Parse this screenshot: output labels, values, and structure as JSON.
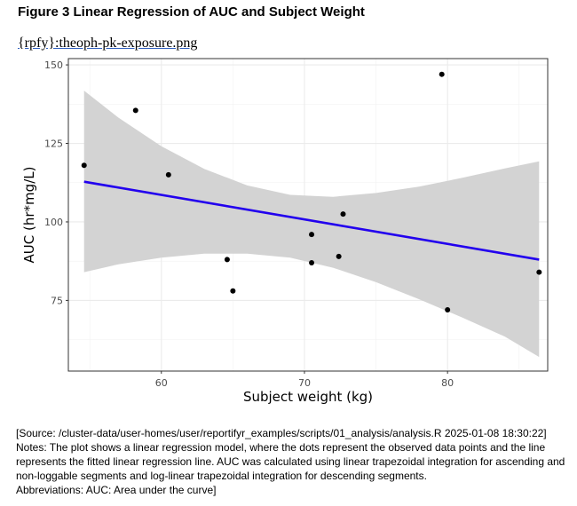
{
  "figure": {
    "title": "Figure 3 Linear Regression of AUC and Subject Weight",
    "ref": "{rpfy}:theoph-pk-exposure.png"
  },
  "chart_data": {
    "type": "scatter",
    "title": "",
    "xlabel": "Subject weight (kg)",
    "ylabel": "AUC (hr*mg/L)",
    "xlim": [
      53.5,
      87.0
    ],
    "ylim": [
      52.5,
      152.0
    ],
    "x_ticks": [
      60,
      70,
      80
    ],
    "y_ticks": [
      75,
      100,
      125,
      150
    ],
    "grid": true,
    "points": [
      {
        "x": 54.6,
        "y": 118.0
      },
      {
        "x": 58.2,
        "y": 135.5
      },
      {
        "x": 60.5,
        "y": 115.0
      },
      {
        "x": 64.6,
        "y": 88.0
      },
      {
        "x": 65.0,
        "y": 78.0
      },
      {
        "x": 70.5,
        "y": 96.0
      },
      {
        "x": 70.5,
        "y": 87.0
      },
      {
        "x": 72.4,
        "y": 89.0
      },
      {
        "x": 72.7,
        "y": 102.5
      },
      {
        "x": 79.6,
        "y": 147.0
      },
      {
        "x": 80.0,
        "y": 72.0
      },
      {
        "x": 86.4,
        "y": 84.0
      }
    ],
    "regression": {
      "x": [
        54.6,
        86.4
      ],
      "y": [
        112.8,
        88.0
      ],
      "color": "#2200ee"
    },
    "confidence_band": {
      "x": [
        54.6,
        57.0,
        60.0,
        63.0,
        66.0,
        69.0,
        72.0,
        75.0,
        78.0,
        81.0,
        84.0,
        86.4
      ],
      "upper": [
        141.8,
        133.2,
        124.1,
        116.9,
        111.6,
        108.6,
        108.0,
        109.2,
        111.2,
        114.0,
        117.0,
        119.3
      ],
      "lower": [
        84.0,
        86.5,
        88.6,
        89.9,
        89.9,
        88.6,
        85.4,
        80.8,
        75.4,
        69.6,
        63.5,
        57.0
      ],
      "color": "#d3d3d3"
    },
    "point_color": "#000000"
  },
  "footnote": {
    "source": "[Source: /cluster-data/user-homes/user/reportifyr_examples/scripts/01_analysis/analysis.R 2025-01-08 18:30:22]",
    "notes_1": "Notes: The plot shows a linear regression model, where the dots represent the observed data points and the line",
    "notes_2": "represents the fitted linear regression line. AUC was calculated using linear trapezoidal integration for ascending and",
    "notes_3": "non-loggable segments and log-linear trapezoidal integration for descending segments.",
    "abbreviations": "Abbreviations: AUC: Area under the curve]"
  }
}
